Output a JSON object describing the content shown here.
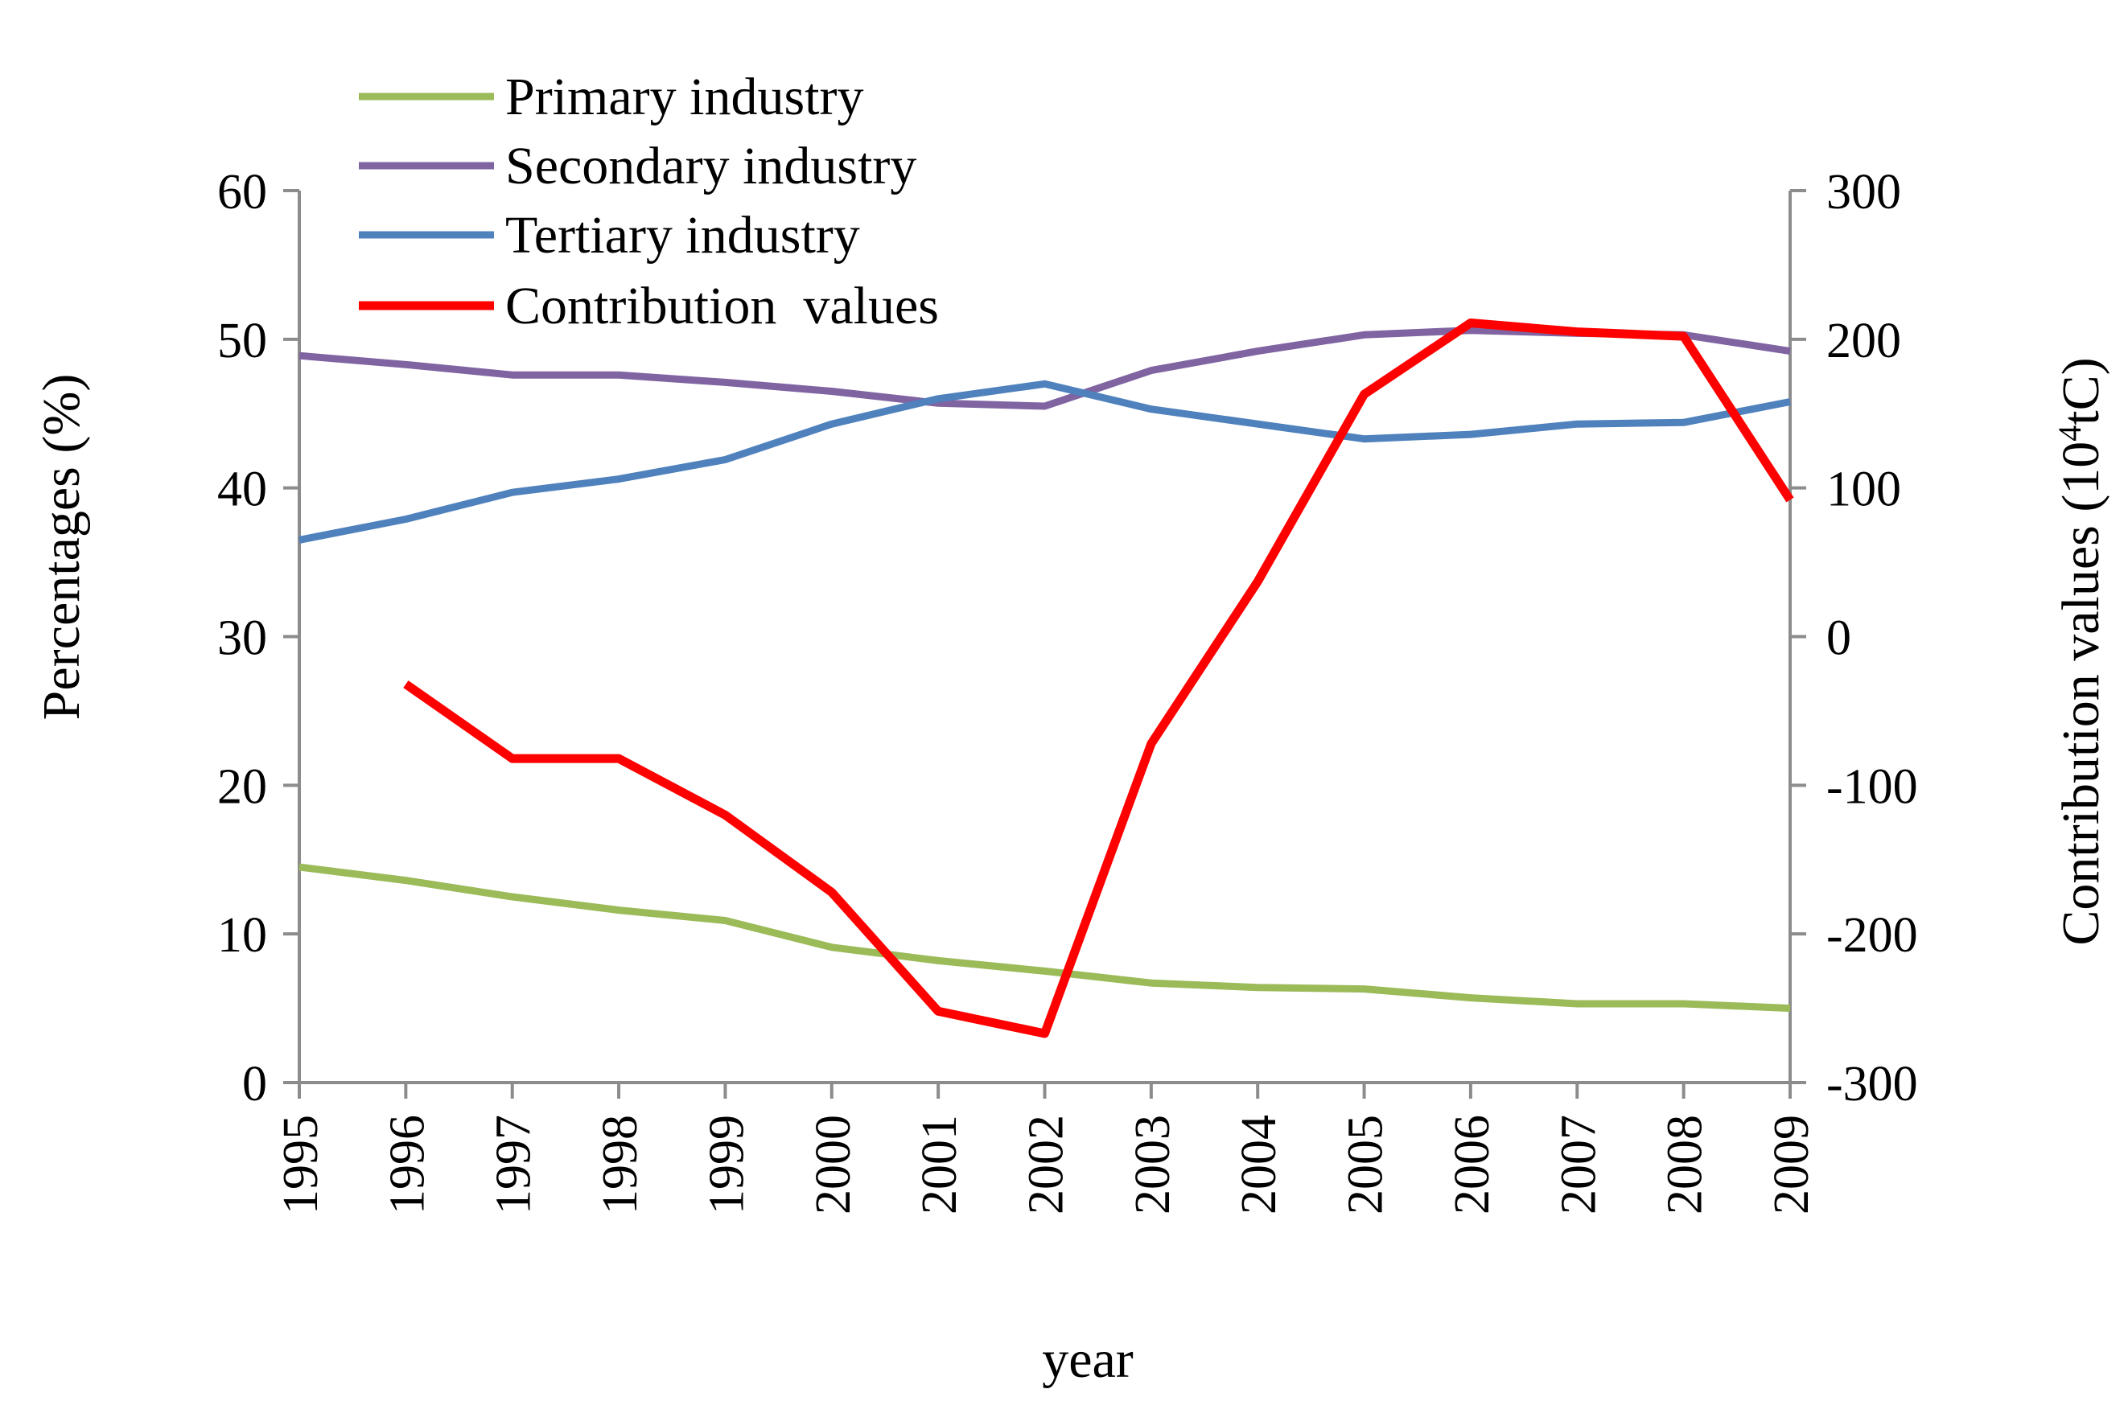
{
  "chart_data": {
    "type": "line",
    "x": [
      "1995",
      "1996",
      "1997",
      "1998",
      "1999",
      "2000",
      "2001",
      "2002",
      "2003",
      "2004",
      "2005",
      "2006",
      "2007",
      "2008",
      "2009"
    ],
    "xlabel": "year",
    "ylabel_left": "Percentages (%)",
    "ylabel_right_main": "Contribution  values (10",
    "ylabel_right_sup": "4",
    "ylabel_right_end": "tC)",
    "ylim_left": [
      0,
      60
    ],
    "ylim_right": [
      -300,
      300
    ],
    "yticks_left": [
      "0",
      "10",
      "20",
      "30",
      "40",
      "50",
      "60"
    ],
    "yticks_right": [
      "-300",
      "-200",
      "-100",
      "0",
      "100",
      "200",
      "300"
    ],
    "grid": false,
    "legend_position": "top-left",
    "series": [
      {
        "name": "Primary industry",
        "axis": "left",
        "color": "#9BBB59",
        "values": [
          14.5,
          13.6,
          12.5,
          11.6,
          10.9,
          9.1,
          8.2,
          7.5,
          6.7,
          6.4,
          6.3,
          5.7,
          5.3,
          5.3,
          5.0
        ]
      },
      {
        "name": "Secondary industry",
        "axis": "left",
        "color": "#8064A2",
        "values": [
          48.9,
          48.3,
          47.6,
          47.6,
          47.1,
          46.5,
          45.7,
          45.5,
          47.9,
          49.2,
          50.3,
          50.6,
          50.4,
          50.3,
          49.2
        ]
      },
      {
        "name": "Tertiary industry",
        "axis": "left",
        "color": "#4F81BD",
        "values": [
          36.5,
          37.9,
          39.7,
          40.6,
          41.9,
          44.3,
          46.0,
          47.0,
          45.3,
          44.3,
          43.3,
          43.6,
          44.3,
          44.4,
          45.8
        ]
      },
      {
        "name": "Contribution  values",
        "axis": "right",
        "color": "#FF0000",
        "values": [
          null,
          -32,
          -82,
          -82,
          -120,
          -172,
          -252,
          -267,
          -72,
          37,
          163,
          211,
          205,
          202,
          92
        ]
      }
    ]
  }
}
